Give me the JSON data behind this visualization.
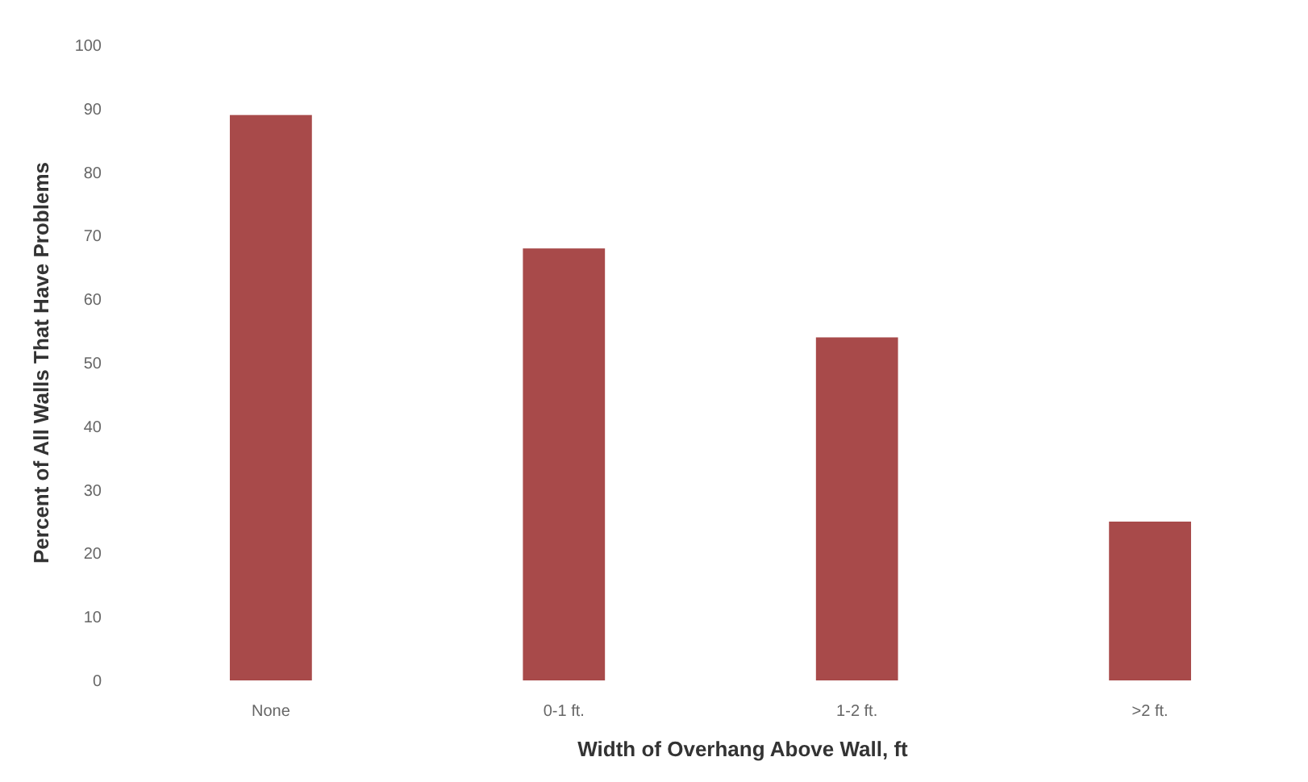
{
  "chart_data": {
    "type": "bar",
    "xlabel": "Width of Overhang Above Wall, ft",
    "ylabel": "Percent of All Walls That Have Problems",
    "categories": [
      "None",
      "0-1 ft.",
      "1-2 ft.",
      ">2 ft."
    ],
    "values": [
      89,
      68,
      54,
      25
    ],
    "color": "#a84a4a",
    "ylim": [
      0,
      100
    ],
    "yticks": [
      0,
      10,
      20,
      30,
      40,
      50,
      60,
      70,
      80,
      90,
      100
    ],
    "grid": false
  }
}
